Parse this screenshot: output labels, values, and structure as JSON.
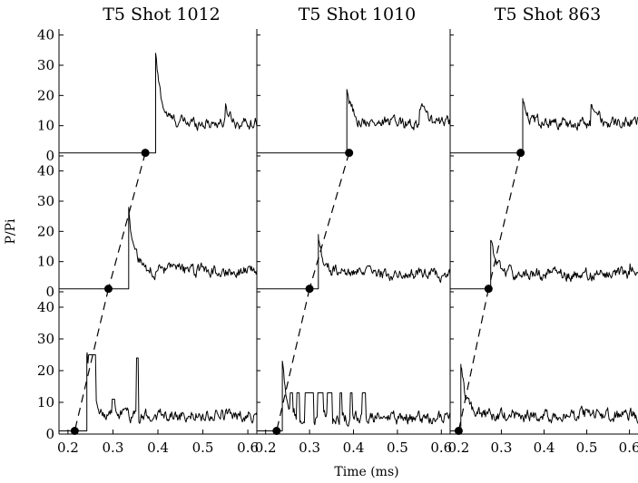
{
  "chart_data": {
    "type": "line",
    "ylabel": "P/Pi",
    "xlabel": "Time (ms)",
    "xlim": [
      0.18,
      0.62
    ],
    "ylim": [
      0,
      42
    ],
    "xticks": [
      0.2,
      0.3,
      0.4,
      0.5,
      0.6
    ],
    "yticks": [
      0,
      10,
      20,
      30,
      40
    ],
    "grid": false,
    "columns": [
      "T5 Shot 1012",
      "T5 Shot 1010",
      "T5 Shot 863"
    ],
    "rows": 3,
    "panels": [
      {
        "col": 0,
        "row": 0,
        "baseline": 1,
        "arrival": 0.395,
        "peak": 34,
        "settle": 11,
        "bumps": [
          [
            0.55,
            16,
            0.025
          ]
        ],
        "spiky": false
      },
      {
        "col": 0,
        "row": 1,
        "baseline": 1,
        "arrival": 0.335,
        "peak": 28,
        "settle": 7,
        "bumps": [],
        "spiky": false
      },
      {
        "col": 0,
        "row": 2,
        "baseline": 1,
        "arrival": 0.242,
        "peak": 25,
        "settle": 6,
        "bumps": [],
        "spiky": true,
        "spikes": [
          [
            0.245,
            0.262,
            25
          ],
          [
            0.352,
            0.356,
            24
          ],
          [
            0.298,
            0.304,
            11
          ]
        ]
      },
      {
        "col": 1,
        "row": 0,
        "baseline": 1,
        "arrival": 0.385,
        "peak": 22,
        "settle": 11,
        "bumps": [
          [
            0.55,
            18,
            0.03
          ]
        ],
        "spiky": false
      },
      {
        "col": 1,
        "row": 1,
        "baseline": 1,
        "arrival": 0.32,
        "peak": 19,
        "settle": 6,
        "bumps": [],
        "spiky": false
      },
      {
        "col": 1,
        "row": 2,
        "baseline": 1,
        "arrival": 0.238,
        "peak": 23,
        "settle": 5,
        "bumps": [],
        "spiky": true,
        "spikes": [
          [
            0.255,
            0.262,
            13
          ],
          [
            0.27,
            0.278,
            13
          ],
          [
            0.29,
            0.31,
            13
          ],
          [
            0.318,
            0.332,
            13
          ],
          [
            0.34,
            0.352,
            13
          ],
          [
            0.368,
            0.374,
            13
          ],
          [
            0.392,
            0.398,
            13
          ],
          [
            0.42,
            0.428,
            13
          ]
        ]
      },
      {
        "col": 2,
        "row": 0,
        "baseline": 1,
        "arrival": 0.35,
        "peak": 19,
        "settle": 11,
        "bumps": [
          [
            0.51,
            20,
            0.03
          ]
        ],
        "spiky": false
      },
      {
        "col": 2,
        "row": 1,
        "baseline": 1,
        "arrival": 0.275,
        "peak": 17,
        "settle": 6,
        "bumps": [
          [
            0.6,
            9,
            0.02
          ]
        ],
        "spiky": false
      },
      {
        "col": 2,
        "row": 2,
        "baseline": 1,
        "arrival": 0.205,
        "peak": 22,
        "settle": 6,
        "bumps": [],
        "spiky": false
      }
    ],
    "markers": [
      {
        "col": 0,
        "row": 0,
        "x": 0.372,
        "y": 1
      },
      {
        "col": 0,
        "row": 1,
        "x": 0.29,
        "y": 1
      },
      {
        "col": 0,
        "row": 2,
        "x": 0.215,
        "y": 1
      },
      {
        "col": 1,
        "row": 0,
        "x": 0.39,
        "y": 1
      },
      {
        "col": 1,
        "row": 1,
        "x": 0.3,
        "y": 1
      },
      {
        "col": 1,
        "row": 2,
        "x": 0.225,
        "y": 1
      },
      {
        "col": 2,
        "row": 0,
        "x": 0.345,
        "y": 1
      },
      {
        "col": 2,
        "row": 1,
        "x": 0.27,
        "y": 1
      },
      {
        "col": 2,
        "row": 2,
        "x": 0.2,
        "y": 1
      }
    ]
  }
}
